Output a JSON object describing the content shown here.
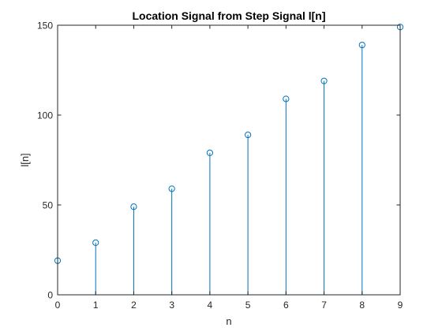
{
  "chart_data": {
    "type": "stem",
    "title": "Location Signal from Step Signal l[n]",
    "xlabel": "n",
    "ylabel": "l[n]",
    "xlim": [
      0,
      9
    ],
    "ylim": [
      0,
      150
    ],
    "x": [
      0,
      1,
      2,
      3,
      4,
      5,
      6,
      7,
      8,
      9
    ],
    "y": [
      19,
      29,
      49,
      59,
      79,
      89,
      109,
      119,
      139,
      149
    ],
    "xticks": [
      "0",
      "1",
      "2",
      "3",
      "4",
      "5",
      "6",
      "7",
      "8",
      "9"
    ],
    "yticks": [
      "0",
      "50",
      "100",
      "150"
    ],
    "grid": false,
    "box": true,
    "colors": {
      "stem": "#0072BD",
      "axis": "#262626",
      "background": "#ffffff"
    }
  }
}
